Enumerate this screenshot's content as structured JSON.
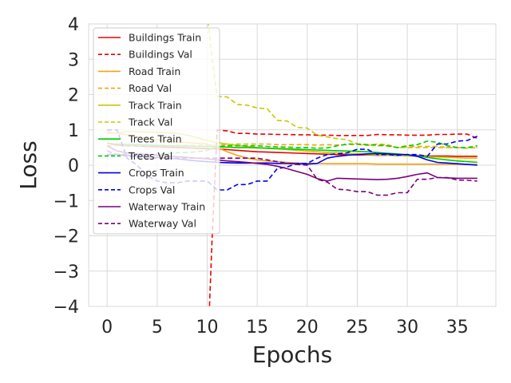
{
  "chart_data": {
    "type": "line",
    "xlabel": "Epochs",
    "ylabel": "Loss",
    "xlim": [
      -1.85,
      38.85
    ],
    "ylim": [
      -4,
      4
    ],
    "xticks": [
      0,
      5,
      10,
      15,
      20,
      25,
      30,
      35
    ],
    "yticks": [
      -4,
      -3,
      -2,
      -1,
      0,
      1,
      2,
      3,
      4
    ],
    "xtick_labels": [
      "0",
      "5",
      "10",
      "15",
      "20",
      "25",
      "30",
      "35"
    ],
    "ytick_labels": [
      "−4",
      "−3",
      "−2",
      "−1",
      "0",
      "1",
      "2",
      "3",
      "4"
    ],
    "grid": true,
    "legend_position": "top-left",
    "series": [
      {
        "name": "Buildings Train",
        "color": "#ee0000",
        "dash": "solid",
        "x": [
          0,
          1,
          2,
          3,
          4,
          5,
          6,
          7,
          8,
          9,
          10,
          11,
          12,
          13,
          14,
          15,
          16,
          17,
          18,
          19,
          20,
          21,
          22,
          23,
          24,
          25,
          26,
          27,
          28,
          29,
          30,
          31,
          32,
          33,
          34,
          35,
          36,
          37
        ],
        "y": [
          0.62,
          0.57,
          0.55,
          0.54,
          0.53,
          0.52,
          0.51,
          0.5,
          0.49,
          0.48,
          0.47,
          0.46,
          0.44,
          0.42,
          0.4,
          0.38,
          0.37,
          0.36,
          0.35,
          0.34,
          0.33,
          0.32,
          0.31,
          0.3,
          0.3,
          0.29,
          0.29,
          0.28,
          0.28,
          0.27,
          0.27,
          0.27,
          0.26,
          0.26,
          0.26,
          0.25,
          0.25,
          0.25
        ]
      },
      {
        "name": "Buildings Val",
        "color": "#ee0000",
        "dash": "dashed",
        "x": [
          10.2,
          10.5,
          11,
          12,
          13,
          14,
          15,
          16,
          17,
          18,
          19,
          20,
          21,
          22,
          23,
          24,
          25,
          26,
          27,
          28,
          29,
          30,
          31,
          32,
          33,
          34,
          35,
          36,
          37
        ],
        "y": [
          -4.2,
          -2.0,
          1.0,
          0.97,
          0.9,
          0.9,
          0.88,
          0.88,
          0.87,
          0.87,
          0.86,
          0.86,
          0.85,
          0.85,
          0.84,
          0.84,
          0.84,
          0.84,
          0.87,
          0.86,
          0.86,
          0.85,
          0.85,
          0.85,
          0.87,
          0.87,
          0.88,
          0.88,
          0.76
        ]
      },
      {
        "name": "Road Train",
        "color": "#f5a30f",
        "dash": "solid",
        "x": [
          0,
          1,
          2,
          3,
          4,
          5,
          6,
          7,
          8,
          9,
          10,
          11,
          12,
          13,
          14,
          15,
          16,
          17,
          18,
          19,
          20,
          21,
          22,
          23,
          24,
          25,
          26,
          27,
          28,
          29,
          30,
          31,
          32,
          33,
          34,
          35,
          36,
          37
        ],
        "y": [
          0.95,
          0.9,
          0.86,
          0.8,
          0.76,
          0.72,
          0.68,
          0.66,
          0.64,
          0.62,
          0.6,
          0.5,
          0.38,
          0.28,
          0.2,
          0.15,
          0.12,
          0.1,
          0.08,
          0.06,
          0.05,
          0.05,
          0.04,
          0.04,
          0.04,
          0.04,
          0.04,
          0.03,
          0.03,
          0.03,
          0.03,
          0.03,
          0.03,
          0.03,
          0.03,
          0.02,
          0.02,
          0.02
        ]
      },
      {
        "name": "Road Val",
        "color": "#f5a30f",
        "dash": "dashed",
        "x": [
          0,
          1,
          2,
          3,
          4,
          5,
          6,
          7,
          8,
          9,
          10,
          11,
          12,
          13,
          14,
          15,
          16,
          17,
          18,
          19,
          20,
          21,
          22,
          23,
          24,
          25,
          26,
          27,
          28,
          29,
          30,
          31,
          32,
          33,
          34,
          35,
          36,
          37
        ],
        "y": [
          0.55,
          0.55,
          0.54,
          0.55,
          0.55,
          0.56,
          0.56,
          0.56,
          0.56,
          0.56,
          0.56,
          0.57,
          0.58,
          0.6,
          0.6,
          0.6,
          0.6,
          0.58,
          0.58,
          0.58,
          0.58,
          0.57,
          0.58,
          0.57,
          0.58,
          0.59,
          0.56,
          0.6,
          0.58,
          0.5,
          0.52,
          0.53,
          0.53,
          0.53,
          0.5,
          0.5,
          0.48,
          0.5
        ]
      },
      {
        "name": "Track Train",
        "color": "#c8c800",
        "dash": "solid",
        "x": [
          0,
          1,
          2,
          3,
          4,
          5,
          6,
          7,
          8,
          9,
          10,
          11,
          12,
          13,
          14,
          15,
          16,
          17,
          18,
          19,
          20,
          21,
          22,
          23,
          24,
          25,
          26,
          27,
          28,
          29,
          30,
          31,
          32,
          33,
          34,
          35,
          36,
          37
        ],
        "y": [
          0.9,
          0.92,
          0.95,
          0.95,
          0.94,
          0.93,
          0.92,
          0.9,
          0.85,
          0.78,
          0.7,
          0.64,
          0.6,
          0.56,
          0.53,
          0.5,
          0.48,
          0.46,
          0.44,
          0.42,
          0.4,
          0.38,
          0.36,
          0.35,
          0.33,
          0.32,
          0.3,
          0.29,
          0.28,
          0.27,
          0.26,
          0.25,
          0.24,
          0.23,
          0.22,
          0.21,
          0.2,
          0.2
        ]
      },
      {
        "name": "Track Val",
        "color": "#c8c800",
        "dash": "dashed",
        "x": [
          10,
          10.5,
          11,
          12,
          13,
          14,
          15,
          16,
          17,
          18,
          19,
          20,
          21,
          22,
          23,
          24,
          25,
          26,
          27,
          28,
          29,
          30,
          31,
          32,
          33,
          34,
          35,
          36,
          37
        ],
        "y": [
          4.3,
          3.0,
          1.95,
          1.93,
          1.72,
          1.7,
          1.62,
          1.6,
          1.27,
          1.25,
          1.07,
          1.05,
          0.85,
          0.8,
          0.75,
          0.72,
          0.6,
          0.58,
          0.55,
          0.55,
          0.5,
          0.5,
          0.5,
          0.5,
          0.5,
          0.5,
          0.5,
          0.5,
          0.5
        ]
      },
      {
        "name": "Trees Train",
        "color": "#00cc00",
        "dash": "solid",
        "x": [
          0,
          1,
          2,
          3,
          4,
          5,
          6,
          7,
          8,
          9,
          10,
          11,
          12,
          13,
          14,
          15,
          16,
          17,
          18,
          19,
          20,
          21,
          22,
          23,
          24,
          25,
          26,
          27,
          28,
          29,
          30,
          31,
          32,
          33,
          34,
          35,
          36,
          37
        ],
        "y": [
          0.62,
          0.6,
          0.59,
          0.58,
          0.57,
          0.56,
          0.55,
          0.54,
          0.54,
          0.53,
          0.53,
          0.52,
          0.51,
          0.5,
          0.5,
          0.49,
          0.48,
          0.47,
          0.46,
          0.45,
          0.44,
          0.43,
          0.42,
          0.41,
          0.4,
          0.39,
          0.38,
          0.36,
          0.34,
          0.32,
          0.29,
          0.26,
          0.22,
          0.18,
          0.15,
          0.12,
          0.1,
          0.08
        ]
      },
      {
        "name": "Trees Val",
        "color": "#00cc00",
        "dash": "dashed",
        "x": [
          0,
          1,
          2,
          3,
          4,
          5,
          6,
          7,
          8,
          9,
          10,
          11,
          12,
          13,
          14,
          15,
          16,
          17,
          18,
          19,
          20,
          21,
          22,
          23,
          24,
          25,
          26,
          27,
          28,
          29,
          30,
          31,
          32,
          33,
          34,
          35,
          36,
          37
        ],
        "y": [
          0.3,
          0.31,
          0.32,
          0.32,
          0.31,
          0.3,
          0.33,
          0.35,
          0.36,
          0.38,
          0.42,
          0.52,
          0.55,
          0.55,
          0.55,
          0.55,
          0.53,
          0.52,
          0.51,
          0.5,
          0.5,
          0.48,
          0.49,
          0.55,
          0.6,
          0.6,
          0.58,
          0.57,
          0.55,
          0.5,
          0.55,
          0.58,
          0.68,
          0.65,
          0.55,
          0.5,
          0.5,
          0.55
        ]
      },
      {
        "name": "Crops Train",
        "color": "#0000ee",
        "dash": "solid",
        "x": [
          0,
          1,
          2,
          3,
          4,
          5,
          6,
          7,
          8,
          9,
          10,
          11,
          12,
          13,
          14,
          15,
          16,
          17,
          18,
          19,
          20,
          21,
          22,
          23,
          24,
          25,
          26,
          27,
          28,
          29,
          30,
          31,
          32,
          33,
          34,
          35,
          36,
          37
        ],
        "y": [
          0.3,
          0.3,
          0.28,
          0.26,
          0.24,
          0.22,
          0.2,
          0.18,
          0.15,
          0.12,
          0.1,
          0.08,
          0.07,
          0.06,
          0.06,
          0.06,
          0.06,
          0.05,
          0.05,
          0.04,
          0.03,
          0.05,
          0.2,
          0.25,
          0.28,
          0.3,
          0.32,
          0.33,
          0.32,
          0.3,
          0.3,
          0.25,
          0.15,
          0.08,
          0.06,
          0.04,
          0.02,
          0.0
        ]
      },
      {
        "name": "Crops Val",
        "color": "#0000ee",
        "dash": "dashed",
        "x": [
          0,
          1,
          2,
          3,
          4,
          5,
          6,
          7,
          8,
          9,
          10,
          11,
          12,
          13,
          14,
          15,
          16,
          17,
          18,
          19,
          20,
          21,
          22,
          23,
          24,
          25,
          26,
          27,
          28,
          29,
          30,
          31,
          32,
          33,
          34,
          35,
          36,
          37
        ],
        "y": [
          1.0,
          1.0,
          0.2,
          0.0,
          -0.3,
          -0.45,
          -0.5,
          -0.5,
          -0.45,
          -0.45,
          -0.45,
          -0.7,
          -0.7,
          -0.55,
          -0.55,
          -0.45,
          -0.45,
          -0.1,
          -0.05,
          0.05,
          0.05,
          0.2,
          0.3,
          0.32,
          0.35,
          0.45,
          0.45,
          0.3,
          0.3,
          0.28,
          0.3,
          0.3,
          0.25,
          0.6,
          0.6,
          0.68,
          0.7,
          0.82
        ]
      },
      {
        "name": "Waterway Train",
        "color": "#7b007b",
        "dash": "solid",
        "x": [
          0,
          1,
          2,
          3,
          4,
          5,
          6,
          7,
          8,
          9,
          10,
          11,
          12,
          13,
          14,
          15,
          16,
          17,
          18,
          19,
          20,
          21,
          22,
          23,
          24,
          25,
          26,
          27,
          28,
          29,
          30,
          31,
          32,
          33,
          34,
          35,
          36,
          37
        ],
        "y": [
          0.55,
          0.4,
          0.35,
          0.32,
          0.3,
          0.28,
          0.26,
          0.24,
          0.22,
          0.2,
          0.18,
          0.15,
          0.12,
          0.1,
          0.08,
          0.05,
          0.02,
          -0.03,
          -0.1,
          -0.18,
          -0.26,
          -0.38,
          -0.45,
          -0.37,
          -0.38,
          -0.39,
          -0.4,
          -0.41,
          -0.4,
          -0.37,
          -0.32,
          -0.26,
          -0.22,
          -0.35,
          -0.36,
          -0.37,
          -0.37,
          -0.37
        ]
      },
      {
        "name": "Waterway Val",
        "color": "#7b007b",
        "dash": "dashed",
        "x": [
          0,
          1,
          2,
          3,
          4,
          5,
          6,
          7,
          8,
          9,
          10,
          11,
          12,
          13,
          14,
          15,
          16,
          17,
          18,
          19,
          20,
          21,
          22,
          23,
          24,
          25,
          26,
          27,
          28,
          29,
          30,
          31,
          32,
          33,
          34,
          35,
          36,
          37
        ],
        "y": [
          0.4,
          0.3,
          0.25,
          0.22,
          0.2,
          0.2,
          0.2,
          0.2,
          0.2,
          0.2,
          0.2,
          0.2,
          0.2,
          0.2,
          0.2,
          0.2,
          0.15,
          0.1,
          0.05,
          0.02,
          0.0,
          -0.4,
          -0.48,
          -0.68,
          -0.7,
          -0.75,
          -0.75,
          -0.85,
          -0.85,
          -0.78,
          -0.78,
          -0.4,
          -0.4,
          -0.35,
          -0.35,
          -0.42,
          -0.43,
          -0.45
        ]
      }
    ]
  }
}
